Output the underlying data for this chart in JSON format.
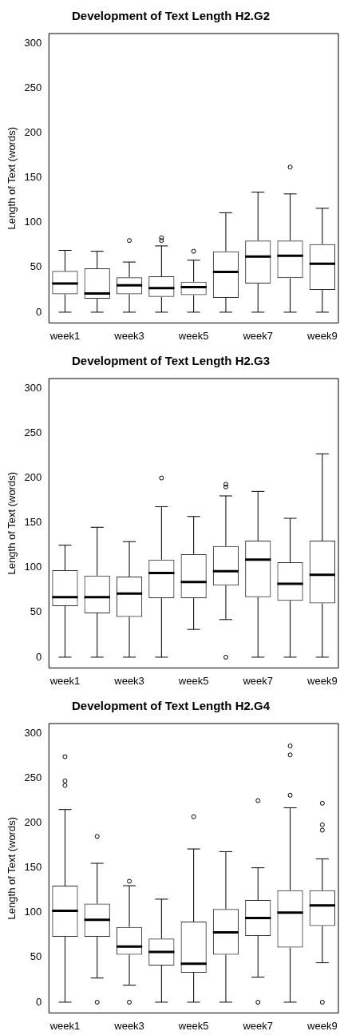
{
  "chart_data": [
    {
      "type": "box",
      "title": "Development of Text Length H2.G2",
      "ylabel": "Length of Text (words)",
      "categories": [
        "week1",
        null,
        "week3",
        null,
        "week5",
        null,
        "week7",
        null,
        "week9"
      ],
      "color": "#333333",
      "ylim": [
        -12,
        311
      ],
      "yticks": [
        0,
        50,
        100,
        150,
        200,
        250,
        300
      ],
      "grid": false,
      "boxes": [
        {
          "low": 0,
          "q1": 20,
          "median": 32,
          "q3": 46,
          "high": 69
        },
        {
          "low": 0,
          "q1": 15,
          "median": 21,
          "q3": 49,
          "high": 68
        },
        {
          "low": 0,
          "q1": 20,
          "median": 30,
          "q3": 39,
          "high": 56,
          "outliers": [
            80
          ]
        },
        {
          "low": 0,
          "q1": 17,
          "median": 27,
          "q3": 40,
          "high": 74,
          "outliers": [
            83,
            80
          ]
        },
        {
          "low": 0,
          "q1": 19,
          "median": 28,
          "q3": 34,
          "high": 58,
          "outliers": [
            68
          ]
        },
        {
          "low": 0,
          "q1": 16,
          "median": 45,
          "q3": 68,
          "high": 111
        },
        {
          "low": 0,
          "q1": 32,
          "median": 62,
          "q3": 80,
          "high": 134
        },
        {
          "low": 0,
          "q1": 38,
          "median": 63,
          "q3": 80,
          "high": 132,
          "outliers": [
            162
          ]
        },
        {
          "low": 0,
          "q1": 25,
          "median": 54,
          "q3": 76,
          "high": 116
        }
      ]
    },
    {
      "type": "box",
      "title": "Development of Text Length H2.G3",
      "ylabel": "Length of Text (words)",
      "categories": [
        "week1",
        null,
        "week3",
        null,
        "week5",
        null,
        "week7",
        null,
        "week9"
      ],
      "color": "#333333",
      "ylim": [
        -12,
        311
      ],
      "yticks": [
        0,
        50,
        100,
        150,
        200,
        250,
        300
      ],
      "grid": false,
      "boxes": [
        {
          "low": 0,
          "q1": 57,
          "median": 67,
          "q3": 97,
          "high": 125
        },
        {
          "low": 0,
          "q1": 49,
          "median": 67,
          "q3": 91,
          "high": 145
        },
        {
          "low": 0,
          "q1": 45,
          "median": 71,
          "q3": 90,
          "high": 129
        },
        {
          "low": 0,
          "q1": 66,
          "median": 94,
          "q3": 109,
          "high": 168,
          "outliers": [
            200
          ]
        },
        {
          "low": 31,
          "q1": 66,
          "median": 84,
          "q3": 115,
          "high": 157
        },
        {
          "low": 42,
          "q1": 80,
          "median": 96,
          "q3": 124,
          "high": 180,
          "outliers": [
            193,
            190,
            0
          ]
        },
        {
          "low": 0,
          "q1": 67,
          "median": 109,
          "q3": 130,
          "high": 185
        },
        {
          "low": 0,
          "q1": 63,
          "median": 82,
          "q3": 106,
          "high": 155
        },
        {
          "low": 0,
          "q1": 60,
          "median": 92,
          "q3": 130,
          "high": 227
        }
      ]
    },
    {
      "type": "box",
      "title": "Development of Text Length H2.G4",
      "ylabel": "Length of Text (words)",
      "categories": [
        "week1",
        null,
        "week3",
        null,
        "week5",
        null,
        "week7",
        null,
        "week9"
      ],
      "color": "#333333",
      "ylim": [
        -12,
        311
      ],
      "yticks": [
        0,
        50,
        100,
        150,
        200,
        250,
        300
      ],
      "grid": false,
      "boxes": [
        {
          "low": 0,
          "q1": 73,
          "median": 102,
          "q3": 130,
          "high": 215,
          "outliers": [
            274,
            247,
            242
          ]
        },
        {
          "low": 27,
          "q1": 73,
          "median": 92,
          "q3": 110,
          "high": 155,
          "outliers": [
            185,
            0
          ]
        },
        {
          "low": 19,
          "q1": 53,
          "median": 62,
          "q3": 84,
          "high": 130,
          "outliers": [
            135,
            0
          ]
        },
        {
          "low": 0,
          "q1": 41,
          "median": 56,
          "q3": 71,
          "high": 115
        },
        {
          "low": 0,
          "q1": 33,
          "median": 43,
          "q3": 90,
          "high": 171,
          "outliers": [
            207
          ]
        },
        {
          "low": 0,
          "q1": 53,
          "median": 78,
          "q3": 104,
          "high": 168
        },
        {
          "low": 28,
          "q1": 74,
          "median": 94,
          "q3": 114,
          "high": 150,
          "outliers": [
            225,
            0
          ]
        },
        {
          "low": 0,
          "q1": 61,
          "median": 100,
          "q3": 125,
          "high": 217,
          "outliers": [
            286,
            276,
            231
          ]
        },
        {
          "low": 44,
          "q1": 85,
          "median": 108,
          "q3": 125,
          "high": 160,
          "outliers": [
            222,
            198,
            192,
            0
          ]
        }
      ]
    }
  ]
}
